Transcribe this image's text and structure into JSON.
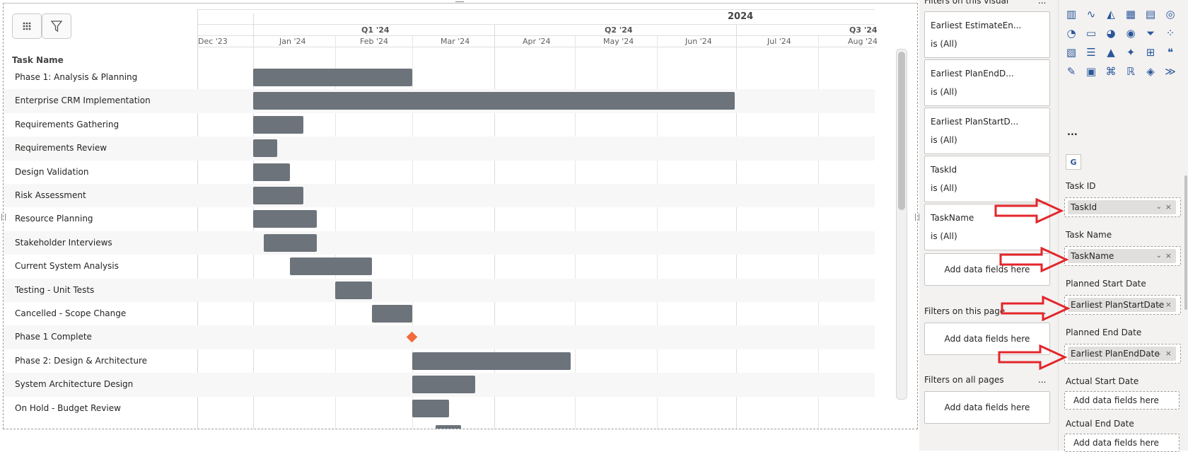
{
  "gantt": {
    "header": {
      "year": "2024",
      "quarters": [
        "Q1 '24",
        "Q2 '24",
        "Q3 '24"
      ],
      "months": [
        "Dec '23",
        "Jan '24",
        "Feb '24",
        "Mar '24",
        "Apr '24",
        "May '24",
        "Jun '24",
        "Jul '24",
        "Aug '24"
      ]
    },
    "task_column_label": "Task Name",
    "tasks": [
      {
        "name": "Phase 1: Analysis & Planning",
        "start": "2024-01-01",
        "end": "2024-03-01"
      },
      {
        "name": "Enterprise CRM Implementation",
        "start": "2024-01-01",
        "end": "2024-07-01"
      },
      {
        "name": "Requirements Gathering",
        "start": "2024-01-01",
        "end": "2024-01-20"
      },
      {
        "name": "Requirements Review",
        "start": "2024-01-01",
        "end": "2024-01-10"
      },
      {
        "name": "Design Validation",
        "start": "2024-01-01",
        "end": "2024-01-15"
      },
      {
        "name": "Risk Assessment",
        "start": "2024-01-01",
        "end": "2024-01-20"
      },
      {
        "name": "Resource Planning",
        "start": "2024-01-01",
        "end": "2024-01-25"
      },
      {
        "name": "Stakeholder Interviews",
        "start": "2024-01-05",
        "end": "2024-01-25"
      },
      {
        "name": "Current System Analysis",
        "start": "2024-01-15",
        "end": "2024-02-15"
      },
      {
        "name": "Testing - Unit Tests",
        "start": "2024-02-01",
        "end": "2024-02-15"
      },
      {
        "name": "Cancelled - Scope Change",
        "start": "2024-02-15",
        "end": "2024-03-01"
      },
      {
        "name": "Phase 1 Complete",
        "milestone": "2024-03-01"
      },
      {
        "name": "Phase 2: Design & Architecture",
        "start": "2024-03-01",
        "end": "2024-04-30"
      },
      {
        "name": "System Architecture Design",
        "start": "2024-03-01",
        "end": "2024-03-25"
      },
      {
        "name": "On Hold - Budget Review",
        "start": "2024-03-01",
        "end": "2024-03-15"
      }
    ],
    "colors": {
      "bar": "#6d737b",
      "milestone": "#f26b3a"
    }
  },
  "filters": {
    "visual_title": "Filters on this visual",
    "cards": [
      {
        "title": "Earliest EstimateEn...",
        "state": "is (All)"
      },
      {
        "title": "Earliest PlanEndD...",
        "state": "is (All)"
      },
      {
        "title": "Earliest PlanStartD...",
        "state": "is (All)"
      },
      {
        "title": "TaskId",
        "state": "is (All)"
      },
      {
        "title": "TaskName",
        "state": "is (All)"
      }
    ],
    "add_label": "Add data fields here",
    "page_title": "Filters on this page",
    "all_title": "Filters on all pages",
    "more": "..."
  },
  "viz": {
    "more": "...",
    "custom_icon": "G",
    "wells": [
      {
        "label": "Task ID",
        "field": "TaskId"
      },
      {
        "label": "Task Name",
        "field": "TaskName"
      },
      {
        "label": "Planned Start Date",
        "field": "Earliest PlanStartDate"
      },
      {
        "label": "Planned End Date",
        "field": "Earliest PlanEndDate"
      },
      {
        "label": "Actual Start Date",
        "field": ""
      },
      {
        "label": "Actual End Date",
        "field": ""
      }
    ],
    "add_label": "Add data fields here",
    "icons": [
      "bar-chart-icon",
      "line-chart-icon",
      "area-chart-icon",
      "table-icon",
      "matrix-icon",
      "map-icon",
      "gauge-icon",
      "card-icon",
      "pie-chart-icon",
      "donut-chart-icon",
      "funnel-icon",
      "scatter-icon",
      "treemap-icon",
      "slicer-icon",
      "kpi-icon",
      "key-influencers-icon",
      "decomposition-tree-icon",
      "qa-icon",
      "smart-narrative-icon",
      "paginated-report-icon",
      "python-visual-icon",
      "r-visual-icon",
      "power-apps-icon",
      "power-automate-icon"
    ],
    "arrow_color": "#e3262b"
  }
}
